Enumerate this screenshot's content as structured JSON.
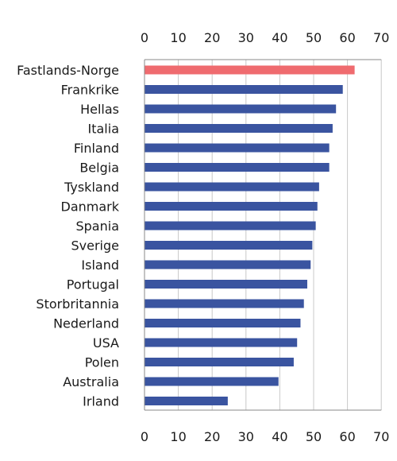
{
  "chart_data": {
    "type": "bar",
    "orientation": "horizontal",
    "categories": [
      "Fastlands-Norge",
      "Frankrike",
      "Hellas",
      "Italia",
      "Finland",
      "Belgia",
      "Tyskland",
      "Danmark",
      "Spania",
      "Sverige",
      "Island",
      "Portugal",
      "Storbritannia",
      "Nederland",
      "USA",
      "Polen",
      "Australia",
      "Irland"
    ],
    "values": [
      62,
      58.5,
      56.5,
      55.5,
      54.5,
      54.5,
      51.5,
      51,
      50.5,
      49.5,
      49,
      48,
      47,
      46,
      45,
      44,
      39.5,
      24.5
    ],
    "xlim": [
      0,
      70
    ],
    "xticks": [
      0,
      10,
      20,
      30,
      40,
      50,
      60,
      70
    ],
    "xtick_labels": [
      "0",
      "10",
      "20",
      "30",
      "40",
      "50",
      "60",
      "70"
    ],
    "axis_position": "top and bottom",
    "grid": true,
    "colors": {
      "highlight": "#ef6b6f",
      "bar": "#3a54a0",
      "grid": "#c8c8c8",
      "axis": "#8a8a8a"
    },
    "highlight_categories": [
      "Fastlands-Norge"
    ]
  }
}
